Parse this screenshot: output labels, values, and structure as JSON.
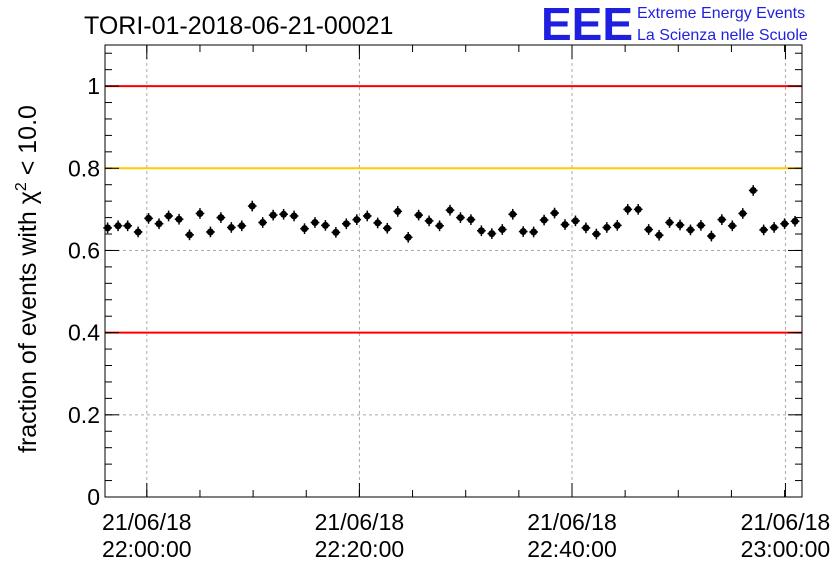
{
  "title": "TORI-01-2018-06-21-00021",
  "logo": {
    "letters": "EEE",
    "line1": "Extreme Energy Events",
    "line2": "La Scienza nelle Scuole",
    "color": "#1f1fe0"
  },
  "chart_data": {
    "type": "scatter",
    "title": "TORI-01-2018-06-21-00021",
    "xlabel": "",
    "ylabel": {
      "prefix": "fraction of events with ",
      "symbol": "χ",
      "sup": "2",
      "suffix": " < 10.0"
    },
    "xlim_minutes_after_21_50": [
      0,
      80
    ],
    "x_unit": "time (21/06/18 hh:mm:ss)",
    "ylim": [
      0,
      1.1
    ],
    "yticks": [
      "0",
      "0.2",
      "0.4",
      "0.6",
      "0.8",
      "1"
    ],
    "ytick_values": [
      0,
      0.2,
      0.4,
      0.6,
      0.8,
      1.0
    ],
    "xticks": [
      {
        "minute": 4.8,
        "date": "21/06/18",
        "time": "22:00:00"
      },
      {
        "minute": 29.2,
        "date": "21/06/18",
        "time": "22:20:00"
      },
      {
        "minute": 53.6,
        "date": "21/06/18",
        "time": "22:40:00"
      },
      {
        "minute": 78.1,
        "date": "21/06/18",
        "time": "23:00:00"
      }
    ],
    "reference_lines": [
      {
        "y": 1.0,
        "color": "#ff0000"
      },
      {
        "y": 0.8,
        "color": "#ffcc00"
      },
      {
        "y": 0.4,
        "color": "#ff0000"
      }
    ],
    "grid": true,
    "series": [
      {
        "marker_color": "#000000",
        "y_error": 0.013,
        "x_error": 0.5,
        "x": [
          0.3,
          1.5,
          2.6,
          3.8,
          5.0,
          6.2,
          7.3,
          8.5,
          9.7,
          10.9,
          12.1,
          13.3,
          14.5,
          15.7,
          16.9,
          18.1,
          19.3,
          20.5,
          21.7,
          22.9,
          24.1,
          25.3,
          26.5,
          27.7,
          28.9,
          30.1,
          31.3,
          32.4,
          33.6,
          34.8,
          36.0,
          37.2,
          38.4,
          39.6,
          40.8,
          42.0,
          43.2,
          44.4,
          45.6,
          46.8,
          48.0,
          49.2,
          50.4,
          51.6,
          52.8,
          54.0,
          55.2,
          56.4,
          57.6,
          58.8,
          60.0,
          61.2,
          62.4,
          63.6,
          64.8,
          66.0,
          67.2,
          68.4,
          69.6,
          70.8,
          72.0,
          73.2,
          74.4,
          75.6,
          76.8,
          78.0,
          79.2
        ],
        "y": [
          0.655,
          0.66,
          0.66,
          0.645,
          0.678,
          0.665,
          0.684,
          0.676,
          0.638,
          0.69,
          0.645,
          0.68,
          0.656,
          0.66,
          0.708,
          0.668,
          0.686,
          0.688,
          0.684,
          0.653,
          0.668,
          0.661,
          0.644,
          0.665,
          0.675,
          0.684,
          0.667,
          0.654,
          0.695,
          0.632,
          0.686,
          0.672,
          0.66,
          0.698,
          0.68,
          0.675,
          0.648,
          0.641,
          0.651,
          0.688,
          0.646,
          0.645,
          0.674,
          0.691,
          0.663,
          0.672,
          0.655,
          0.64,
          0.656,
          0.661,
          0.7,
          0.7,
          0.651,
          0.637,
          0.668,
          0.662,
          0.65,
          0.661,
          0.635,
          0.675,
          0.66,
          0.69,
          0.746,
          0.65,
          0.656,
          0.665,
          0.671
        ]
      }
    ]
  }
}
